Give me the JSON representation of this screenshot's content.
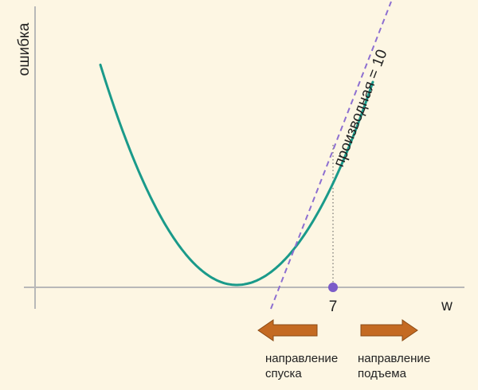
{
  "axes": {
    "y_label": "ошибка",
    "x_label": "w"
  },
  "point": {
    "label": "7",
    "color": "#7b5cc9"
  },
  "tangent": {
    "label": "производная = 10",
    "color": "#8d6fd1"
  },
  "curve": {
    "color": "#1a9a8a"
  },
  "arrows": {
    "color": "#c46a22",
    "descent": {
      "direction": "left",
      "line1": "направление",
      "line2": "спуска"
    },
    "ascent": {
      "direction": "right",
      "line1": "направление",
      "line2": "подъема"
    }
  }
}
